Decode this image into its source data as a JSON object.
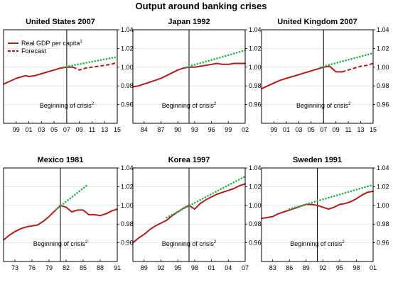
{
  "title": "Output around banking crises",
  "colors": {
    "gdp": "#b01c1c",
    "forecast_dash": "#b01c1c",
    "trend": "#2db34a",
    "grid": "#e6e6e6"
  },
  "chart_data": [
    {
      "type": "line",
      "title": "United States 2007",
      "crisis_label": "Beginning of crisis",
      "crisis_sup": "2",
      "crisis_x": 7,
      "xlim": [
        -3,
        15
      ],
      "ylim": [
        0.94,
        1.04
      ],
      "yticks": [
        "0.96",
        "0.98",
        "1.00",
        "1.02",
        "1.04"
      ],
      "xticks": [
        {
          "v": -1,
          "t": "99"
        },
        {
          "v": 1,
          "t": "01"
        },
        {
          "v": 3,
          "t": "03"
        },
        {
          "v": 5,
          "t": "05"
        },
        {
          "v": 7,
          "t": "07"
        },
        {
          "v": 9,
          "t": "09"
        },
        {
          "v": 11,
          "t": "11"
        },
        {
          "v": 13,
          "t": "13"
        },
        {
          "v": 15,
          "t": "15"
        }
      ],
      "legend": [
        {
          "label": "Real GDP per capita",
          "sup": "1",
          "style": "solid"
        },
        {
          "label": "Forecast",
          "sup": "",
          "style": "dash"
        }
      ],
      "series": [
        {
          "name": "Real GDP per capita",
          "style": "solid",
          "x": [
            -3,
            -2,
            -1,
            0,
            0.5,
            1,
            2,
            3,
            4,
            5,
            6,
            7,
            7.5,
            8
          ],
          "y": [
            0.982,
            0.985,
            0.988,
            0.99,
            0.991,
            0.99,
            0.991,
            0.993,
            0.995,
            0.997,
            0.999,
            1.0,
            1.0,
            1.0
          ]
        },
        {
          "name": "Forecast",
          "style": "dash",
          "x": [
            8,
            9,
            10,
            11,
            12,
            13,
            14,
            15
          ],
          "y": [
            1.0,
            0.997,
            0.999,
            1.0,
            1.001,
            1.002,
            1.003,
            1.005
          ]
        },
        {
          "name": "Trend",
          "style": "dot",
          "x": [
            6.5,
            15
          ],
          "y": [
            1.0,
            1.011
          ]
        }
      ]
    },
    {
      "type": "line",
      "title": "Japan 1992",
      "crisis_label": "Beginning of crisis",
      "crisis_sup": "2",
      "crisis_x": 92,
      "xlim": [
        82,
        102
      ],
      "ylim": [
        0.94,
        1.04
      ],
      "yticks": [
        "0.96",
        "0.98",
        "1.00",
        "1.02",
        "1.04"
      ],
      "xticks": [
        {
          "v": 84,
          "t": "84"
        },
        {
          "v": 87,
          "t": "87"
        },
        {
          "v": 90,
          "t": "90"
        },
        {
          "v": 93,
          "t": "93"
        },
        {
          "v": 96,
          "t": "96"
        },
        {
          "v": 99,
          "t": "99"
        },
        {
          "v": 102,
          "t": "02"
        }
      ],
      "series": [
        {
          "name": "Real GDP per capita",
          "style": "solid",
          "x": [
            82,
            83,
            84,
            85,
            86,
            87,
            88,
            89,
            90,
            91,
            92,
            93,
            94,
            95,
            96,
            97,
            98,
            99,
            100,
            101,
            102
          ],
          "y": [
            0.979,
            0.98,
            0.982,
            0.984,
            0.986,
            0.988,
            0.991,
            0.994,
            0.997,
            0.999,
            1.0,
            1.0,
            1.001,
            1.002,
            1.003,
            1.004,
            1.003,
            1.003,
            1.004,
            1.004,
            1.004
          ]
        },
        {
          "name": "Trend",
          "style": "dot",
          "x": [
            91.5,
            102
          ],
          "y": [
            1.0,
            1.018
          ]
        }
      ]
    },
    {
      "type": "line",
      "title": "United Kingdom 2007",
      "crisis_label": "Beginning of crisis",
      "crisis_sup": "2",
      "crisis_x": 7,
      "xlim": [
        -3,
        15
      ],
      "ylim": [
        0.94,
        1.04
      ],
      "yticks": [
        "0.96",
        "0.98",
        "1.00",
        "1.02",
        "1.04"
      ],
      "xticks": [
        {
          "v": -1,
          "t": "99"
        },
        {
          "v": 1,
          "t": "01"
        },
        {
          "v": 3,
          "t": "03"
        },
        {
          "v": 5,
          "t": "05"
        },
        {
          "v": 7,
          "t": "07"
        },
        {
          "v": 9,
          "t": "09"
        },
        {
          "v": 11,
          "t": "11"
        },
        {
          "v": 13,
          "t": "13"
        },
        {
          "v": 15,
          "t": "15"
        }
      ],
      "series": [
        {
          "name": "Real GDP per capita",
          "style": "solid",
          "x": [
            -3,
            -2,
            -1,
            0,
            1,
            2,
            3,
            4,
            5,
            6,
            7,
            8,
            9,
            10
          ],
          "y": [
            0.977,
            0.98,
            0.983,
            0.986,
            0.988,
            0.99,
            0.992,
            0.994,
            0.996,
            0.998,
            1.0,
            1.001,
            0.995,
            0.995
          ]
        },
        {
          "name": "Forecast",
          "style": "dash",
          "x": [
            10,
            11,
            12,
            13,
            14,
            15
          ],
          "y": [
            0.995,
            0.997,
            0.999,
            1.001,
            1.002,
            1.004
          ]
        },
        {
          "name": "Trend",
          "style": "dot",
          "x": [
            6.5,
            15
          ],
          "y": [
            1.0,
            1.015
          ]
        }
      ]
    },
    {
      "type": "line",
      "title": "Mexico 1981",
      "crisis_label": "Beginning of crisis",
      "crisis_sup": "2",
      "crisis_x": 81,
      "xlim": [
        71,
        91
      ],
      "ylim": [
        0.94,
        1.04
      ],
      "yticks": [
        "0.96",
        "0.98",
        "1.00",
        "1.02",
        "1.04"
      ],
      "xticks": [
        {
          "v": 73,
          "t": "73"
        },
        {
          "v": 76,
          "t": "76"
        },
        {
          "v": 79,
          "t": "79"
        },
        {
          "v": 82,
          "t": "82"
        },
        {
          "v": 85,
          "t": "85"
        },
        {
          "v": 88,
          "t": "88"
        },
        {
          "v": 91,
          "t": "91"
        }
      ],
      "series": [
        {
          "name": "Real GDP per capita",
          "style": "solid",
          "x": [
            71,
            72,
            73,
            74,
            75,
            76,
            77,
            78,
            79,
            80,
            81,
            82,
            83,
            84,
            85,
            86,
            87,
            88,
            89,
            90,
            91
          ],
          "y": [
            0.963,
            0.968,
            0.972,
            0.975,
            0.977,
            0.978,
            0.979,
            0.983,
            0.988,
            0.994,
            1.0,
            0.998,
            0.993,
            0.995,
            0.995,
            0.99,
            0.99,
            0.989,
            0.991,
            0.994,
            0.996
          ]
        },
        {
          "name": "Trend",
          "style": "dot",
          "x": [
            80.3,
            85.8
          ],
          "y": [
            0.996,
            1.022
          ]
        }
      ]
    },
    {
      "type": "line",
      "title": "Korea 1997",
      "crisis_label": "Beginning of crisis",
      "crisis_sup": "2",
      "crisis_x": 97,
      "xlim": [
        87,
        107
      ],
      "ylim": [
        0.94,
        1.04
      ],
      "yticks": [
        "0.96",
        "0.98",
        "1.00",
        "1.02",
        "1.04"
      ],
      "xticks": [
        {
          "v": 89,
          "t": "89"
        },
        {
          "v": 92,
          "t": "92"
        },
        {
          "v": 95,
          "t": "95"
        },
        {
          "v": 98,
          "t": "98"
        },
        {
          "v": 101,
          "t": "01"
        },
        {
          "v": 104,
          "t": "04"
        },
        {
          "v": 107,
          "t": "07"
        }
      ],
      "series": [
        {
          "name": "Real GDP per capita",
          "style": "solid",
          "x": [
            87,
            88,
            89,
            90,
            91,
            92,
            93,
            94,
            95,
            96,
            97,
            98,
            99,
            100,
            101,
            102,
            103,
            104,
            105,
            106,
            107
          ],
          "y": [
            0.96,
            0.965,
            0.969,
            0.974,
            0.978,
            0.981,
            0.984,
            0.989,
            0.993,
            0.997,
            1.0,
            0.996,
            1.002,
            1.006,
            1.009,
            1.012,
            1.014,
            1.016,
            1.018,
            1.021,
            1.023
          ]
        },
        {
          "name": "Trend",
          "style": "dot",
          "x": [
            93,
            107
          ],
          "y": [
            0.987,
            1.031
          ]
        }
      ]
    },
    {
      "type": "line",
      "title": "Sweden 1991",
      "crisis_label": "Beginning of crisis",
      "crisis_sup": "2",
      "crisis_x": 91,
      "xlim": [
        81,
        101
      ],
      "ylim": [
        0.94,
        1.04
      ],
      "yticks": [
        "0.96",
        "0.98",
        "1.00",
        "1.02",
        "1.04"
      ],
      "xticks": [
        {
          "v": 83,
          "t": "83"
        },
        {
          "v": 86,
          "t": "86"
        },
        {
          "v": 89,
          "t": "89"
        },
        {
          "v": 92,
          "t": "92"
        },
        {
          "v": 95,
          "t": "95"
        },
        {
          "v": 98,
          "t": "98"
        },
        {
          "v": 101,
          "t": "01"
        }
      ],
      "series": [
        {
          "name": "Real GDP per capita",
          "style": "solid",
          "x": [
            81,
            82,
            83,
            84,
            85,
            86,
            87,
            88,
            89,
            90,
            91,
            92,
            93,
            94,
            95,
            96,
            97,
            98,
            99,
            100,
            101
          ],
          "y": [
            0.986,
            0.987,
            0.988,
            0.991,
            0.993,
            0.995,
            0.997,
            0.999,
            1.001,
            1.001,
            1.0,
            0.998,
            0.996,
            0.998,
            1.001,
            1.002,
            1.004,
            1.007,
            1.011,
            1.014,
            1.015
          ]
        },
        {
          "name": "Trend",
          "style": "dot",
          "x": [
            86,
            101
          ],
          "y": [
            0.996,
            1.022
          ]
        }
      ]
    }
  ]
}
